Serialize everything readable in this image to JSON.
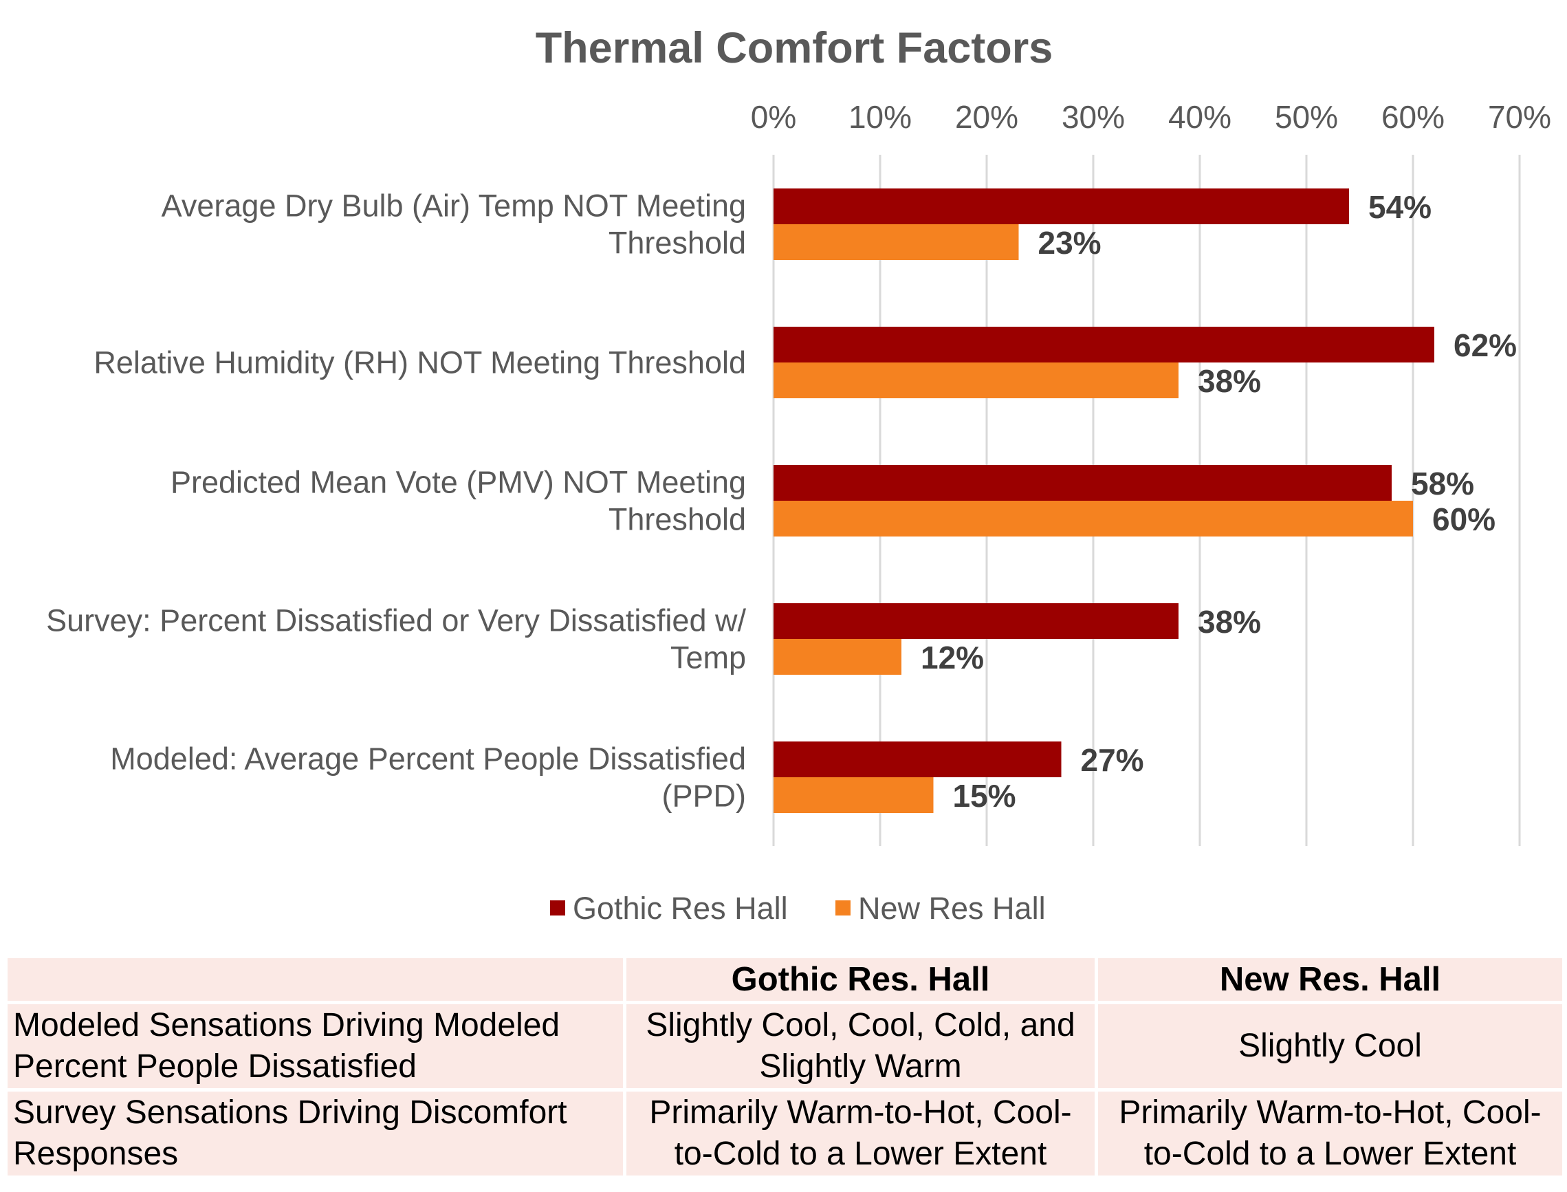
{
  "chart_data": {
    "type": "bar",
    "orientation": "horizontal",
    "title": "Thermal Comfort Factors",
    "categories": [
      [
        "Average Dry Bulb (Air) Temp NOT Meeting",
        "Threshold"
      ],
      [
        "Relative Humidity (RH) NOT Meeting Threshold"
      ],
      [
        "Predicted Mean Vote (PMV) NOT Meeting",
        "Threshold"
      ],
      [
        "Survey: Percent Dissatisfied or Very Dissatisfied w/",
        "Temp"
      ],
      [
        "Modeled: Average Percent People Dissatisfied",
        "(PPD)"
      ]
    ],
    "series": [
      {
        "name": "Gothic Res Hall",
        "color": "#9b0000",
        "values": [
          54,
          62,
          58,
          38,
          27
        ]
      },
      {
        "name": "New Res Hall",
        "color": "#f58220",
        "values": [
          23,
          38,
          60,
          12,
          15
        ]
      }
    ],
    "xlim": [
      0,
      70
    ],
    "xticks": [
      "0%",
      "10%",
      "20%",
      "30%",
      "40%",
      "50%",
      "60%",
      "70%"
    ],
    "x_axis_position": "top",
    "value_suffix": "%",
    "grid": true,
    "legend_position": "bottom"
  },
  "table": {
    "headers": [
      "",
      "Gothic Res. Hall",
      "New Res. Hall"
    ],
    "rows": [
      {
        "label": [
          "Modeled Sensations Driving Modeled",
          "Percent People Dissatisfied"
        ],
        "gothic": [
          "Slightly Cool, Cool, Cold, and",
          "Slightly Warm"
        ],
        "new": [
          "Slightly Cool"
        ]
      },
      {
        "label": [
          "Survey Sensations Driving Discomfort",
          "Responses"
        ],
        "gothic": [
          "Primarily Warm-to-Hot, Cool-",
          "to-Cold to a Lower Extent"
        ],
        "new": [
          "Primarily Warm-to-Hot, Cool-",
          "to-Cold to a Lower Extent"
        ]
      }
    ]
  }
}
